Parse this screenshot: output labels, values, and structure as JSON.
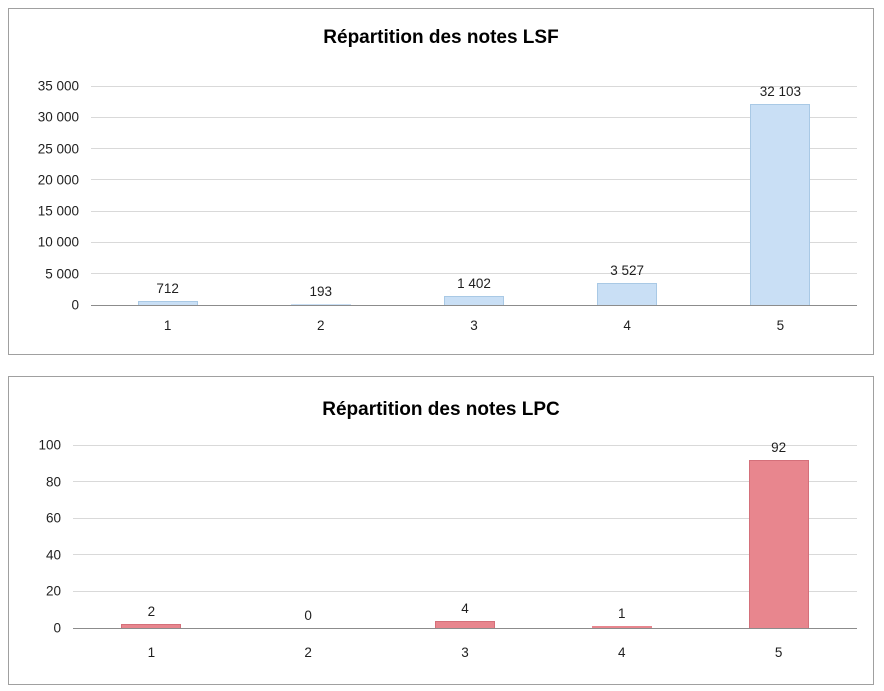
{
  "chart_data": [
    {
      "type": "bar",
      "title": "Répartition des notes LSF",
      "categories": [
        "1",
        "2",
        "3",
        "4",
        "5"
      ],
      "values": [
        712,
        193,
        1402,
        3527,
        32103
      ],
      "data_labels": [
        "712",
        "193",
        "1 402",
        "3 527",
        "32 103"
      ],
      "xlabel": "",
      "ylabel": "",
      "ylim": [
        0,
        35000
      ],
      "ytick_step": 5000,
      "yticks": [
        "0",
        "5 000",
        "10 000",
        "15 000",
        "20 000",
        "25 000",
        "30 000",
        "35 000"
      ],
      "grid": true,
      "legend": "none",
      "bar_color": "#c9dff5",
      "bar_border": "#a9c9e5"
    },
    {
      "type": "bar",
      "title": "Répartition des notes LPC",
      "categories": [
        "1",
        "2",
        "3",
        "4",
        "5"
      ],
      "values": [
        2,
        0,
        4,
        1,
        92
      ],
      "data_labels": [
        "2",
        "0",
        "4",
        "1",
        "92"
      ],
      "xlabel": "",
      "ylabel": "",
      "ylim": [
        0,
        100
      ],
      "ytick_step": 20,
      "yticks": [
        "0",
        "20",
        "40",
        "60",
        "80",
        "100"
      ],
      "grid": true,
      "legend": "none",
      "bar_color": "#e8868e",
      "bar_border": "#d4707a"
    }
  ],
  "colors": {
    "gridline": "#d9d9d9",
    "axis_line": "#8c8c8c",
    "panel_border": "#a0a0a0",
    "text": "#1f1f1f"
  }
}
